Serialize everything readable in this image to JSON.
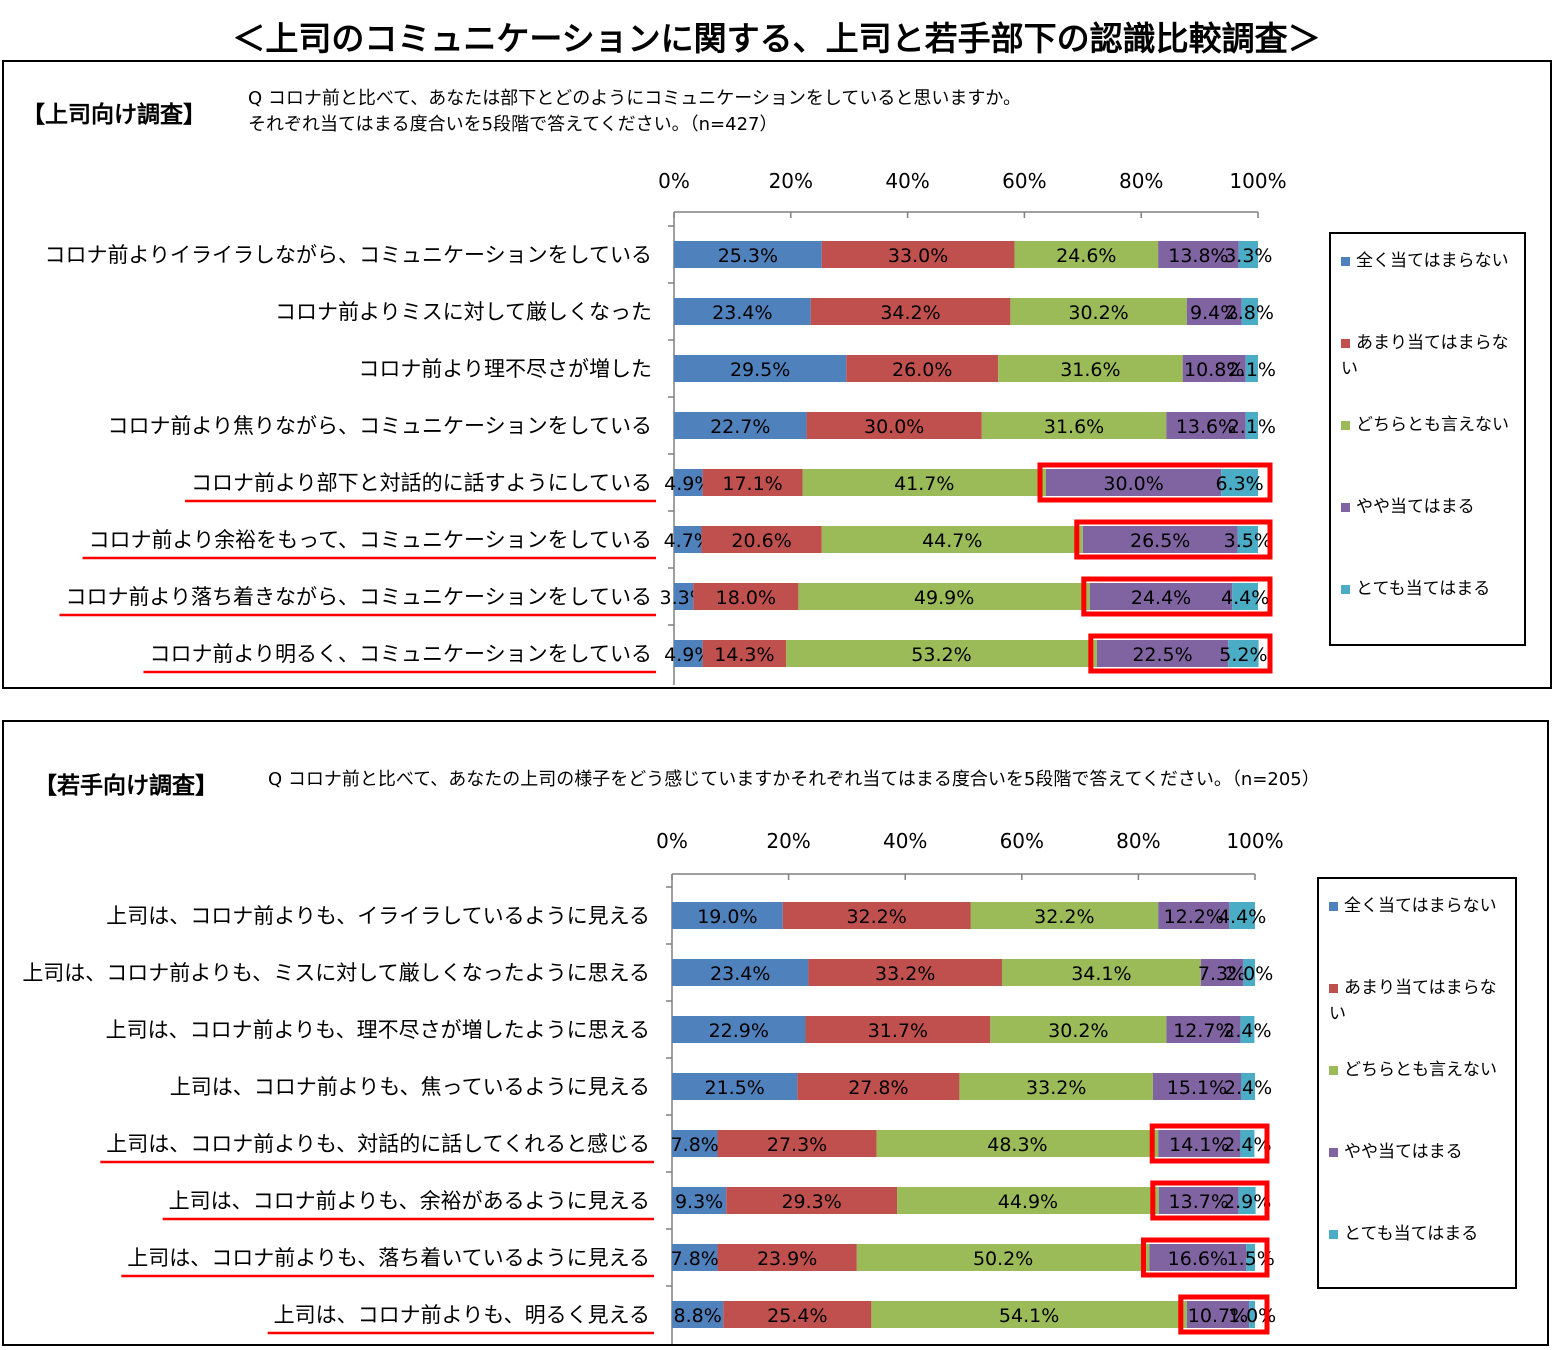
{
  "title": "＜上司のコミュニケーションに関する、上司と若手部下の認識比較調査＞",
  "legend": [
    "全く当てはまらない",
    "あまり当てはまらない",
    "どちらとも言えない",
    "やや当てはまる",
    "とても当てはまる"
  ],
  "colors": {
    "series": [
      "#4f81bd",
      "#c0504d",
      "#9bbb59",
      "#8064a2",
      "#4bacc6"
    ],
    "highlight": "#ff0000",
    "underline": "#ff0000"
  },
  "panels": [
    {
      "label": "【上司向け調査】",
      "question": "Q コロナ前と比べて、あなたは部下とどのようにコミュニケーションをしていると思いますか。\nそれぞれ当てはまる度合いを5段階で答えてください。（n=427）"
    },
    {
      "label": "【若手向け調査】",
      "question": "Q コロナ前と比べて、あなたの上司の様子をどう感じていますかそれぞれ当てはまる度合いを5段階で答えてください。（n=205）"
    }
  ],
  "chart_data": [
    {
      "type": "bar",
      "orientation": "horizontal-stacked-100",
      "x_ticks": [
        "0%",
        "20%",
        "40%",
        "60%",
        "80%",
        "100%"
      ],
      "xlim": [
        0,
        100
      ],
      "series_names": [
        "全く当てはまらない",
        "あまり当てはまらない",
        "どちらとも言えない",
        "やや当てはまる",
        "とても当てはまる"
      ],
      "categories": [
        "コロナ前よりイライラしながら、コミュニケーションをしている",
        "コロナ前よりミスに対して厳しくなった",
        "コロナ前より理不尽さが増した",
        "コロナ前より焦りながら、コミュニケーションをしている",
        "コロナ前より部下と対話的に話すようにしている",
        "コロナ前より余裕をもって、コミュニケーションをしている",
        "コロナ前より落ち着きながら、コミュニケーションをしている",
        "コロナ前より明るく、コミュニケーションをしている"
      ],
      "values": [
        [
          25.3,
          33.0,
          24.6,
          13.8,
          3.3
        ],
        [
          23.4,
          34.2,
          30.2,
          9.4,
          2.8
        ],
        [
          29.5,
          26.0,
          31.6,
          10.8,
          2.1
        ],
        [
          22.7,
          30.0,
          31.6,
          13.6,
          2.1
        ],
        [
          4.9,
          17.1,
          41.7,
          30.0,
          6.3
        ],
        [
          4.7,
          20.6,
          44.7,
          26.5,
          3.5
        ],
        [
          3.3,
          18.0,
          49.9,
          24.4,
          4.4
        ],
        [
          4.9,
          14.3,
          53.2,
          22.5,
          5.2
        ]
      ],
      "labels": [
        [
          "25.3%",
          "33.0%",
          "24.6%",
          "13.8%",
          "3.3%"
        ],
        [
          "23.4%",
          "34.2%",
          "30.2%",
          "9.4%",
          "2.8%"
        ],
        [
          "29.5%",
          "26.0%",
          "31.6%",
          "10.8%",
          "2.1%"
        ],
        [
          "22.7%",
          "30.0%",
          "31.6%",
          "13.6%",
          "2.1%"
        ],
        [
          "4.9%",
          "17.1%",
          "41.7%",
          "30.0%",
          "6.3%"
        ],
        [
          "4.7%",
          "20.6%",
          "44.7%",
          "26.5%",
          "3.5%"
        ],
        [
          "3.3%",
          "18.0%",
          "49.9%",
          "24.4%",
          "4.4%"
        ],
        [
          "4.9%",
          "14.3%",
          "53.2%",
          "22.5%",
          "5.2%"
        ]
      ],
      "highlighted_rows": [
        4,
        5,
        6,
        7
      ],
      "legend_position": "right"
    },
    {
      "type": "bar",
      "orientation": "horizontal-stacked-100",
      "x_ticks": [
        "0%",
        "20%",
        "40%",
        "60%",
        "80%",
        "100%"
      ],
      "xlim": [
        0,
        100
      ],
      "series_names": [
        "全く当てはまらない",
        "あまり当てはまらない",
        "どちらとも言えない",
        "やや当てはまる",
        "とても当てはまる"
      ],
      "categories": [
        "上司は、コロナ前よりも、イライラしているように見える",
        "上司は、コロナ前よりも、ミスに対して厳しくなったように思える",
        "上司は、コロナ前よりも、理不尽さが増したように思える",
        "上司は、コロナ前よりも、焦っているように見える",
        "上司は、コロナ前よりも、対話的に話してくれると感じる",
        "上司は、コロナ前よりも、余裕があるように見える",
        "上司は、コロナ前よりも、落ち着いているように見える",
        "上司は、コロナ前よりも、明るく見える"
      ],
      "values": [
        [
          19.0,
          32.2,
          32.2,
          12.2,
          4.4
        ],
        [
          23.4,
          33.2,
          34.1,
          7.3,
          2.0
        ],
        [
          22.9,
          31.7,
          30.2,
          12.7,
          2.4
        ],
        [
          21.5,
          27.8,
          33.2,
          15.1,
          2.4
        ],
        [
          7.8,
          27.3,
          48.3,
          14.1,
          2.4
        ],
        [
          9.3,
          29.3,
          44.9,
          13.7,
          2.9
        ],
        [
          7.8,
          23.9,
          50.2,
          16.6,
          1.5
        ],
        [
          8.8,
          25.4,
          54.1,
          10.7,
          1.0
        ]
      ],
      "labels": [
        [
          "19.0%",
          "32.2%",
          "32.2%",
          "12.2%",
          "4.4%"
        ],
        [
          "23.4%",
          "33.2%",
          "34.1%",
          "7.3%",
          "2.0%"
        ],
        [
          "22.9%",
          "31.7%",
          "30.2%",
          "12.7%",
          "2.4%"
        ],
        [
          "21.5%",
          "27.8%",
          "33.2%",
          "15.1%",
          "2.4%"
        ],
        [
          "7.8%",
          "27.3%",
          "48.3%",
          "14.1%",
          "2.4%"
        ],
        [
          "9.3%",
          "29.3%",
          "44.9%",
          "13.7%",
          "2.9%"
        ],
        [
          "7.8%",
          "23.9%",
          "50.2%",
          "16.6%",
          "1.5%"
        ],
        [
          "8.8%",
          "25.4%",
          "54.1%",
          "10.7%",
          "1.0%"
        ]
      ],
      "highlighted_rows": [
        4,
        5,
        6,
        7
      ],
      "legend_position": "right"
    }
  ]
}
